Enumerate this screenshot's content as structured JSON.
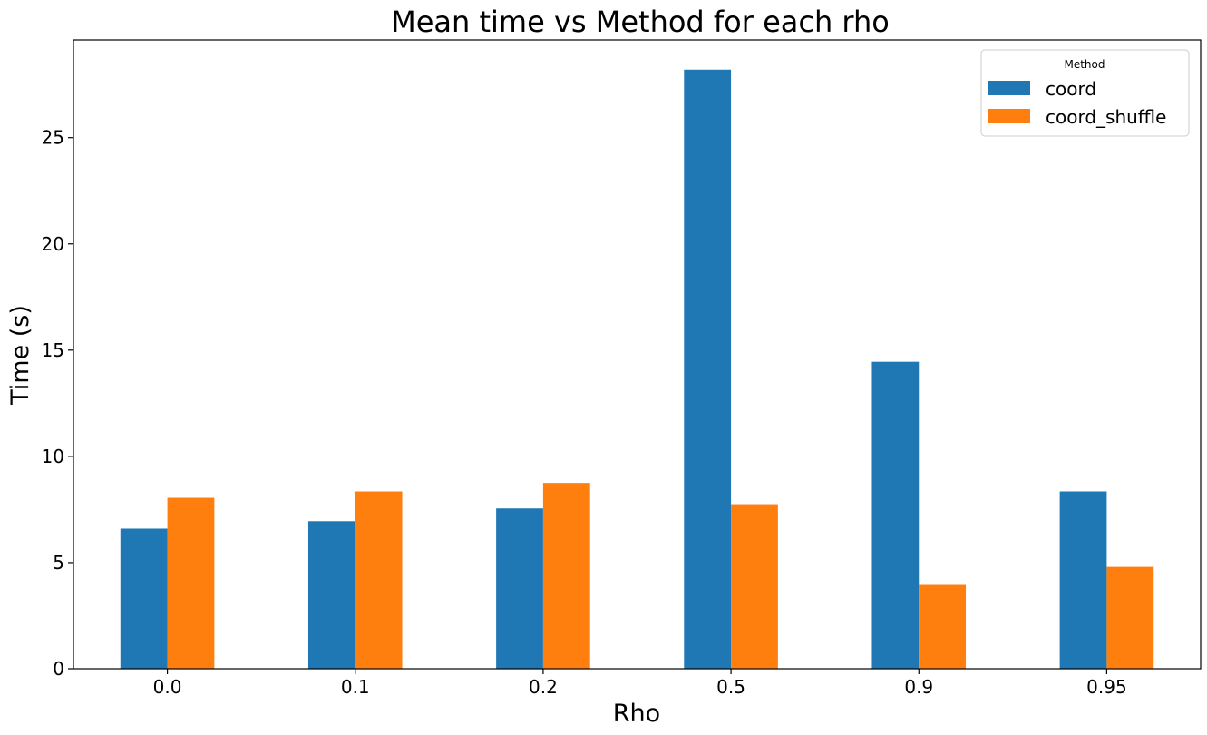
{
  "chart_data": {
    "type": "bar",
    "title": "Mean time vs Method for each rho",
    "xlabel": "Rho",
    "ylabel": "Time (s)",
    "categories": [
      "0.0",
      "0.1",
      "0.2",
      "0.5",
      "0.9",
      "0.95"
    ],
    "series": [
      {
        "name": "coord",
        "color": "#1f77b4",
        "values": [
          6.6,
          6.95,
          7.55,
          28.2,
          14.45,
          8.35
        ]
      },
      {
        "name": "coord_shuffle",
        "color": "#ff7f0e",
        "values": [
          8.05,
          8.35,
          8.75,
          7.75,
          3.95,
          4.8
        ]
      }
    ],
    "ylim": [
      0,
      29.6
    ],
    "yticks": [
      0,
      5,
      10,
      15,
      20,
      25
    ],
    "grid": false,
    "legend": {
      "title": "Method",
      "position": "top-right"
    }
  }
}
